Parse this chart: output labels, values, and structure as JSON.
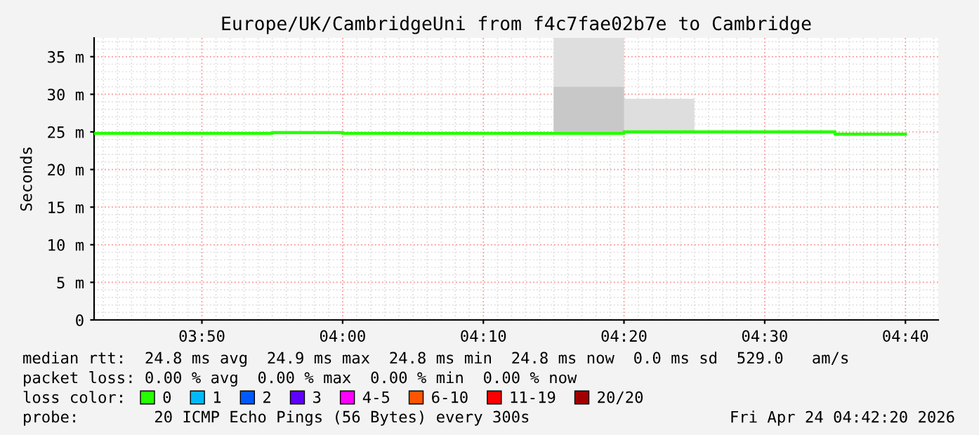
{
  "chart_data": {
    "type": "step",
    "title": "Europe/UK/CambridgeUni from f4c7fae02b7e to Cambridge",
    "ylabel": "Seconds",
    "series": [
      {
        "type": "bar",
        "color": "#dedede",
        "x": [
          4.2917,
          4.375
        ],
        "base": [
          24.8,
          25.0
        ],
        "values": [
          12.7,
          4.4
        ]
      },
      {
        "type": "bar",
        "color": "#c8c8c8",
        "x": [
          4.2917
        ],
        "base": [
          24.8
        ],
        "values": [
          6.2
        ]
      },
      {
        "name": "0",
        "color": "#26ff00",
        "x": [
          3.7056,
          3.9167,
          4.0,
          4.3333,
          4.5833,
          4.6667
        ],
        "values": [
          24.8,
          24.9,
          24.8,
          25.0,
          24.7,
          24.7
        ]
      },
      {
        "name": "1",
        "color": "#00b8ff"
      },
      {
        "name": "2",
        "color": "#0059ff"
      },
      {
        "name": "3",
        "color": "#5e00ff"
      },
      {
        "name": "4-5",
        "color": "#ff00ff"
      },
      {
        "name": "6-10",
        "color": "#ff5500"
      },
      {
        "name": "11-19",
        "color": "#ff0000"
      },
      {
        "name": "20/20",
        "color": "#a10000"
      }
    ],
    "legend_title": "loss color:",
    "legend": "bottom",
    "xlim": [
      3.7056,
      4.7056
    ],
    "xticks": [
      {
        "value": 3.8333,
        "label": "03:50"
      },
      {
        "value": 4.0,
        "label": "04:00"
      },
      {
        "value": 4.1667,
        "label": "04:10"
      },
      {
        "value": 4.3333,
        "label": "04:20"
      },
      {
        "value": 4.5,
        "label": "04:30"
      },
      {
        "value": 4.6667,
        "label": "04:40"
      }
    ],
    "ylim": [
      0,
      37.5
    ],
    "yticks": [
      0,
      {
        "value": 5,
        "label": "5 m"
      },
      {
        "value": 10,
        "label": "10 m"
      },
      {
        "value": 15,
        "label": "15 m"
      },
      {
        "value": 20,
        "label": "20 m"
      },
      {
        "value": 25,
        "label": "25 m"
      },
      {
        "value": 30,
        "label": "30 m"
      },
      {
        "value": 35,
        "label": "35 m"
      }
    ],
    "grid": true,
    "annotations": [
      "median rtt:  24.8 ms avg  24.9 ms max  24.8 ms min  24.8 ms now  0.0 ms sd  529.0   am/s",
      "packet loss: 0.00 % avg  0.00 % max  0.00 % min  0.00 % now",
      "probe:        20 ICMP Echo Pings (56 Bytes) every 300s",
      "Fri Apr 24 04:42:20 2026"
    ]
  }
}
